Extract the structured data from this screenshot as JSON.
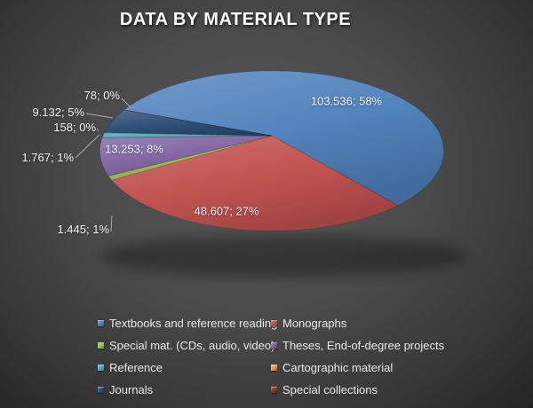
{
  "chart_data": {
    "type": "pie",
    "title": "DATA BY MATERIAL TYPE",
    "style": "3d-perspective",
    "legend_position": "bottom",
    "rotation_deg": 291,
    "labels": [
      "Textbooks and reference reading",
      "Monographs",
      "Special mat. (CDs, audio, video)",
      "Theses, End-of-degree projects",
      "Reference",
      "Cartographic material",
      "Journals",
      "Special collections"
    ],
    "values": [
      103536,
      48607,
      1445,
      13253,
      1767,
      158,
      9132,
      78
    ],
    "percent_labels": [
      "58%",
      "27%",
      "1%",
      "8%",
      "1%",
      "0%",
      "5%",
      "0%"
    ],
    "data_labels": [
      "103.536; 58%",
      "48.607; 27%",
      "1.445; 1%",
      "13.253; 8%",
      "1.767; 1%",
      "158; 0%",
      "9.132; 5%",
      "78; 0%"
    ],
    "colors": [
      "#4F81BD",
      "#C0504D",
      "#9BBB59",
      "#8064A2",
      "#4BACC6",
      "#F79646",
      "#2C4D75",
      "#8B3231"
    ]
  }
}
